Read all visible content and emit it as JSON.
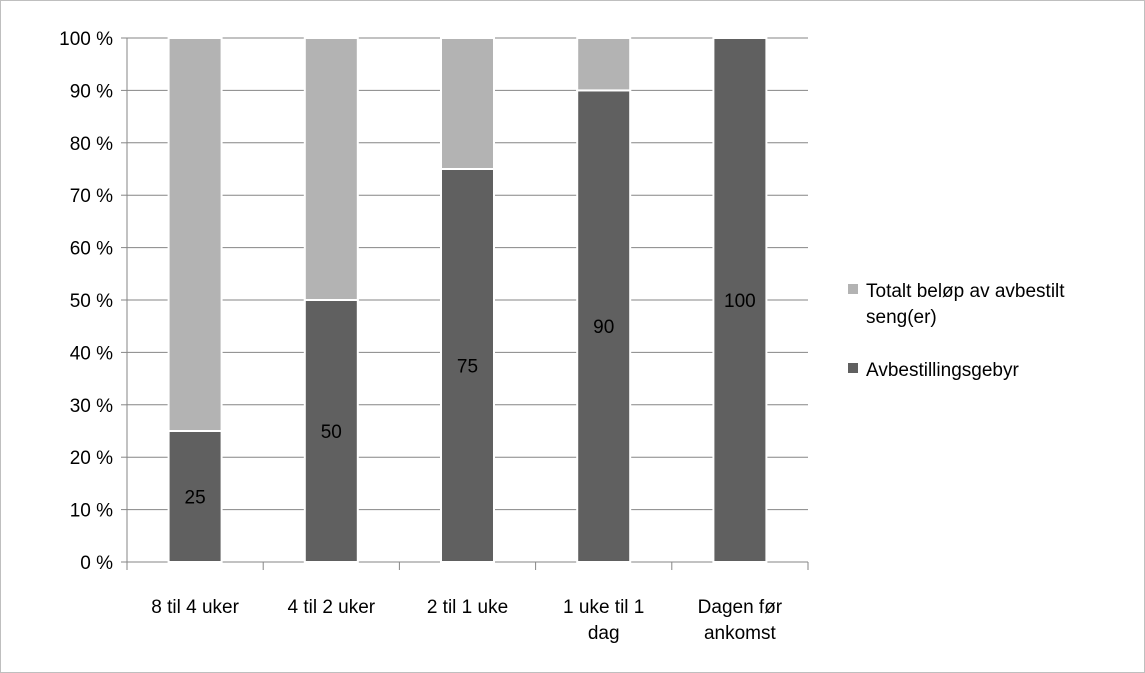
{
  "chart_data": {
    "type": "bar",
    "stacked": true,
    "percent_stacked": true,
    "categories": [
      [
        "8 til 4 uker"
      ],
      [
        "4 til 2 uker"
      ],
      [
        "2 til 1 uke"
      ],
      [
        "1 uke til 1",
        "dag"
      ],
      [
        "Dagen før",
        "ankomst"
      ]
    ],
    "series": [
      {
        "name": "Avbestillingsgebyr",
        "values": [
          25,
          50,
          75,
          90,
          100
        ],
        "color": "#606060",
        "data_labels": [
          "25",
          "50",
          "75",
          "90",
          "100"
        ]
      },
      {
        "name": "Totalt beløp av avbestilt seng(er)",
        "values": [
          75,
          50,
          25,
          10,
          0
        ],
        "color": "#b3b3b3",
        "data_labels": []
      }
    ],
    "y_ticks": [
      "0 %",
      "10 %",
      "20 %",
      "30 %",
      "40 %",
      "50 %",
      "60 %",
      "70 %",
      "80 %",
      "90 %",
      "100 %"
    ],
    "ylim": [
      0,
      100
    ],
    "grid": true,
    "legend": {
      "position": "right",
      "entries": [
        {
          "lines": [
            "Totalt beløp av avbestilt",
            "seng(er)"
          ],
          "color": "#b3b3b3"
        },
        {
          "lines": [
            "Avbestillingsgebyr"
          ],
          "color": "#606060"
        }
      ]
    },
    "title": "",
    "xlabel": "",
    "ylabel": ""
  }
}
